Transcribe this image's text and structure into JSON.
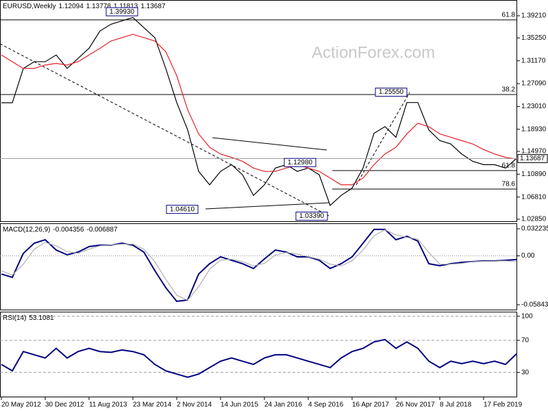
{
  "chart_data": [
    {
      "type": "line",
      "title": "EURUSD,Weekly",
      "readout": [
        1.12094,
        1.13778,
        1.11813,
        1.13687
      ],
      "watermark": "ActionForex.com",
      "ylim": [
        1.0236,
        1.4203
      ],
      "yticks": [
        {
          "value": 1.3921,
          "label": "1.39210"
        },
        {
          "value": 1.3525,
          "label": "1.35250"
        },
        {
          "value": 1.3117,
          "label": "1.31170"
        },
        {
          "value": 1.2709,
          "label": "1.27090"
        },
        {
          "value": 1.2301,
          "label": "1.23010"
        },
        {
          "value": 1.1893,
          "label": "1.18930"
        },
        {
          "value": 1.1497,
          "label": "1.14970"
        },
        {
          "value": 1.1089,
          "label": "1.10890"
        },
        {
          "value": 1.0681,
          "label": "1.06810"
        },
        {
          "value": 1.0285,
          "label": "1.02850"
        }
      ],
      "series": [
        {
          "color": "#000000",
          "values": [
            1.2366,
            1.2366,
            1.2978,
            1.31,
            1.31,
            1.322,
            1.298,
            1.316,
            1.334,
            1.365,
            1.377,
            1.383,
            1.389,
            1.371,
            1.353,
            1.298,
            1.237,
            1.188,
            1.114,
            1.09,
            1.114,
            1.126,
            1.108,
            1.071,
            1.09,
            1.12,
            1.126,
            1.114,
            1.12,
            1.108,
            1.053,
            1.071,
            1.084,
            1.12,
            1.182,
            1.194,
            1.175,
            1.237,
            1.237,
            1.188,
            1.169,
            1.163,
            1.145,
            1.132,
            1.126,
            1.126,
            1.12,
            1.137
          ]
        },
        {
          "color": "#e0202a",
          "values": [
            1.322,
            1.31,
            1.298,
            1.298,
            1.304,
            1.307,
            1.304,
            1.31,
            1.322,
            1.334,
            1.347,
            1.353,
            1.359,
            1.353,
            1.347,
            1.328,
            1.285,
            1.224,
            1.181,
            1.157,
            1.145,
            1.139,
            1.132,
            1.12,
            1.114,
            1.114,
            1.12,
            1.126,
            1.12,
            1.114,
            1.102,
            1.09,
            1.09,
            1.102,
            1.126,
            1.145,
            1.157,
            1.181,
            1.2,
            1.194,
            1.181,
            1.175,
            1.169,
            1.163,
            1.153,
            1.145,
            1.139,
            1.136
          ]
        }
      ],
      "annotations": [
        {
          "value": 1.3993,
          "label": "1.39930"
        },
        {
          "value": 1.2555,
          "label": "1.25550"
        },
        {
          "value": 1.1298,
          "label": "1.12980"
        },
        {
          "value": 1.0461,
          "label": "1.04610"
        },
        {
          "value": 1.0339,
          "label": "1.03390"
        }
      ],
      "levels": [
        {
          "value": 1.3848,
          "label": "61.8"
        },
        {
          "value": 1.2513,
          "label": "38.2"
        },
        {
          "value": 1.1155,
          "label": "61.8"
        },
        {
          "value": 1.0824,
          "label": "78.6"
        }
      ]
    },
    {
      "type": "line",
      "title": "MACD(12,26,9)",
      "readout": [
        -0.004356,
        -0.006887
      ],
      "ylim": [
        -0.065,
        0.0388
      ],
      "yticks": [
        0.032235,
        {
          "value": 0,
          "label": "0.00"
        },
        -0.058434
      ],
      "zero_line": true,
      "series": [
        {
          "color": "#000080",
          "values": [
            -0.0217,
            -0.0257,
            0.0029,
            0.0151,
            0.0192,
            0.0069,
            0.0012,
            0.0045,
            0.011,
            0.0127,
            0.0127,
            0.0151,
            0.0127,
            0.0045,
            -0.0176,
            -0.038,
            -0.0543,
            -0.0527,
            -0.0217,
            -0.0094,
            -0.0012,
            -0.0053,
            -0.0094,
            -0.0151,
            -0.0037,
            0.0069,
            0.0045,
            -0.0012,
            -0.0012,
            -0.0053,
            -0.0151,
            -0.0094,
            -0.0012,
            0.0151,
            0.0315,
            0.0315,
            0.0192,
            0.0233,
            0.0176,
            -0.0094,
            -0.0118,
            -0.0094,
            -0.0078,
            -0.0069,
            -0.0061,
            -0.0061,
            -0.0053,
            -0.0044
          ]
        },
        {
          "color": "#b0b0b0",
          "values": [
            -0.018,
            -0.023,
            -0.01,
            0.008,
            0.016,
            0.012,
            0.005,
            0.003,
            0.008,
            0.012,
            0.013,
            0.014,
            0.014,
            0.008,
            -0.007,
            -0.028,
            -0.047,
            -0.053,
            -0.037,
            -0.016,
            -0.005,
            -0.004,
            -0.007,
            -0.012,
            -0.009,
            0.001,
            0.004,
            0.002,
            -0.001,
            -0.004,
            -0.01,
            -0.012,
            -0.006,
            0.007,
            0.024,
            0.031,
            0.025,
            0.022,
            0.02,
            0.004,
            -0.01,
            -0.01,
            -0.009,
            -0.007,
            -0.0065,
            -0.0063,
            -0.006,
            -0.0069
          ]
        }
      ]
    },
    {
      "type": "line",
      "title": "RSI(14)",
      "readout": [
        53.1081
      ],
      "ylim": [
        -1,
        105.7
      ],
      "yticks": [
        100,
        70,
        30
      ],
      "grid": true,
      "categories": [
        "20 May 2012",
        null,
        null,
        null,
        "30 Dec 2012",
        null,
        null,
        null,
        "11 Aug 2013",
        null,
        null,
        null,
        "23 Mar 2014",
        null,
        null,
        null,
        "2 Nov 2014",
        null,
        null,
        null,
        "14 Jun 2015",
        null,
        null,
        null,
        "24 Jan 2016",
        null,
        null,
        null,
        "4 Sep 2016",
        null,
        null,
        null,
        "16 Apr 2017",
        null,
        null,
        null,
        "26 Nov 2017",
        null,
        null,
        null,
        "8 Jul 2018",
        null,
        null,
        null,
        "17 Feb 2019",
        null,
        null,
        null
      ],
      "series": [
        {
          "color": "#000080",
          "values": [
            40,
            32,
            56,
            52,
            48,
            60,
            48,
            56,
            60,
            56,
            55,
            58,
            56,
            52,
            40,
            32,
            28,
            24,
            28,
            36,
            44,
            48,
            44,
            40,
            48,
            52,
            52,
            48,
            44,
            40,
            36,
            48,
            56,
            60,
            68,
            71,
            60,
            68,
            60,
            44,
            36,
            44,
            41,
            44,
            41,
            44,
            40,
            53.1
          ]
        }
      ]
    }
  ]
}
